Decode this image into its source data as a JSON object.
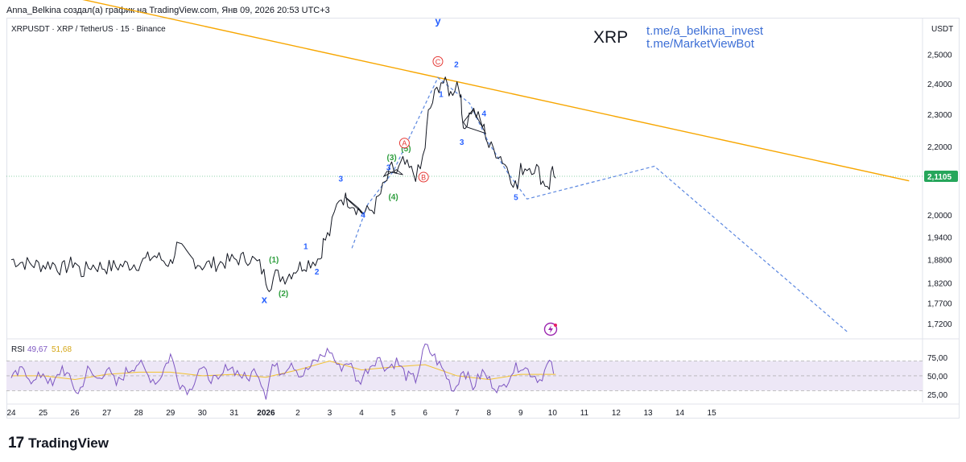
{
  "caption": "Anna_Belkina создал(а) график на TradingView.com, Янв 09, 2026 20:53 UTC+3",
  "footer": {
    "logo_mark": "17",
    "logo_text": "TradingView"
  },
  "colors": {
    "candle": "#131722",
    "trendline": "#f7a600",
    "wave_blue": "#2962ff",
    "wave_green": "#2e9e3e",
    "wave_red": "#e53935",
    "dashed": "#5b87e0",
    "rsi": "#7e57c2",
    "rsi_ma": "#f2c12e",
    "rsi_band": "#ede7f6",
    "price_tag": "#26a65b"
  },
  "icons": {
    "flash": "lightning-icon"
  },
  "chart_data": [
    {
      "type": "line",
      "header": {
        "symbol": "XRPUSDT · XRP / TetherUS · 15 · Binance"
      },
      "watermark": {
        "title": "XRP",
        "links": [
          "t.me/a_belkina_invest",
          "t.me/MarketViewBot"
        ]
      },
      "currency_label": "USDT",
      "yaxis": {
        "scale": "log",
        "ylim": [
          1.686,
          2.63
        ],
        "ticks": [
          "2,5000",
          "2,4000",
          "2,3000",
          "2,2000",
          "2,0000",
          "1,9400",
          "1,8800",
          "1,8200",
          "1,7700",
          "1,7200"
        ]
      },
      "tick_values": [
        2.5,
        2.4,
        2.3,
        2.2,
        2.0,
        1.94,
        1.88,
        1.82,
        1.77,
        1.72
      ],
      "last_price": {
        "label": "2,1105",
        "value": 2.1105
      },
      "xaxis": {
        "ticks": [
          "24",
          "25",
          "26",
          "27",
          "28",
          "29",
          "30",
          "31",
          "2026",
          "2",
          "3",
          "4",
          "5",
          "6",
          "7",
          "8",
          "9",
          "10",
          "11",
          "12",
          "13",
          "14",
          "15"
        ]
      },
      "price_path": [
        [
          0,
          1.88
        ],
        [
          0.5,
          1.87
        ],
        [
          1,
          1.865
        ],
        [
          1.3,
          1.87
        ],
        [
          1.6,
          1.855
        ],
        [
          2,
          1.875
        ],
        [
          2.2,
          1.845
        ],
        [
          2.5,
          1.865
        ],
        [
          3,
          1.86
        ],
        [
          3.5,
          1.865
        ],
        [
          4,
          1.87
        ],
        [
          4.5,
          1.89
        ],
        [
          5,
          1.87
        ],
        [
          5.2,
          1.915
        ],
        [
          5.5,
          1.89
        ],
        [
          6,
          1.865
        ],
        [
          6.5,
          1.87
        ],
        [
          7,
          1.88
        ],
        [
          7.5,
          1.885
        ],
        [
          7.8,
          1.865
        ],
        [
          8,
          1.83
        ],
        [
          8.1,
          1.815
        ],
        [
          8.3,
          1.84
        ],
        [
          8.6,
          1.835
        ],
        [
          9,
          1.86
        ],
        [
          9.4,
          1.875
        ],
        [
          9.7,
          1.885
        ],
        [
          9.8,
          1.925
        ],
        [
          10,
          1.95
        ],
        [
          10.3,
          2.05
        ],
        [
          10.5,
          2.045
        ],
        [
          10.7,
          2.035
        ],
        [
          10.9,
          2.015
        ],
        [
          11.1,
          2.005
        ],
        [
          11.4,
          2.02
        ],
        [
          11.6,
          2.06
        ],
        [
          11.8,
          2.1
        ],
        [
          11.95,
          2.135
        ],
        [
          12.1,
          2.12
        ],
        [
          12.3,
          2.15
        ],
        [
          12.5,
          2.13
        ],
        [
          12.7,
          2.115
        ],
        [
          12.85,
          2.13
        ],
        [
          13,
          2.2
        ],
        [
          13.1,
          2.3
        ],
        [
          13.3,
          2.36
        ],
        [
          13.5,
          2.41
        ],
        [
          13.7,
          2.39
        ],
        [
          13.8,
          2.365
        ],
        [
          14,
          2.405
        ],
        [
          14.1,
          2.38
        ],
        [
          14.15,
          2.3
        ],
        [
          14.25,
          2.26
        ],
        [
          14.45,
          2.315
        ],
        [
          14.6,
          2.3
        ],
        [
          14.8,
          2.265
        ],
        [
          14.9,
          2.24
        ],
        [
          15,
          2.2
        ],
        [
          15.3,
          2.18
        ],
        [
          15.5,
          2.15
        ],
        [
          15.7,
          2.11
        ],
        [
          15.9,
          2.075
        ],
        [
          16,
          2.13
        ],
        [
          16.2,
          2.14
        ],
        [
          16.5,
          2.135
        ],
        [
          16.7,
          2.095
        ],
        [
          16.9,
          2.085
        ],
        [
          17.0,
          2.14
        ],
        [
          17.1,
          2.105
        ]
      ],
      "trendline": [
        [
          -0.5,
          2.77
        ],
        [
          28.2,
          2.097
        ]
      ],
      "projection_path": [
        [
          10.7,
          1.91
        ],
        [
          11.2,
          2.03
        ],
        [
          12.0,
          2.125
        ],
        [
          13.4,
          2.42
        ],
        [
          14.4,
          2.335
        ],
        [
          15.0,
          2.21
        ],
        [
          15.6,
          2.12
        ],
        [
          16.2,
          2.045
        ],
        [
          20.2,
          2.14
        ],
        [
          26.3,
          1.698
        ]
      ],
      "triangles": [
        [
          [
            10.5,
            2.05
          ],
          [
            10.9,
            2.02
          ],
          [
            11.1,
            2.0
          ],
          [
            10.6,
            2.04
          ]
        ],
        [
          [
            11.7,
            2.11
          ],
          [
            12.1,
            2.13
          ],
          [
            12.3,
            2.115
          ],
          [
            11.8,
            2.125
          ]
        ],
        [
          [
            14.2,
            2.275
          ],
          [
            14.5,
            2.315
          ],
          [
            14.9,
            2.24
          ],
          [
            14.3,
            2.26
          ]
        ]
      ],
      "wave_labels": [
        {
          "text": "(1)",
          "x": 8.25,
          "y": 1.873,
          "color": "green"
        },
        {
          "text": "(2)",
          "x": 8.55,
          "y": 1.787,
          "color": "green"
        },
        {
          "text": "x",
          "x": 7.95,
          "y": 1.77,
          "color": "blue",
          "size": 13
        },
        {
          "text": "1",
          "x": 9.25,
          "y": 1.908,
          "color": "blue"
        },
        {
          "text": "2",
          "x": 9.6,
          "y": 1.842,
          "color": "blue"
        },
        {
          "text": "3",
          "x": 10.35,
          "y": 2.095,
          "color": "blue"
        },
        {
          "text": "4",
          "x": 11.05,
          "y": 1.992,
          "color": "blue"
        },
        {
          "text": "(3)",
          "x": 11.95,
          "y": 2.158,
          "color": "green"
        },
        {
          "text": "3",
          "x": 11.85,
          "y": 2.128,
          "color": "blue"
        },
        {
          "text": "(4)",
          "x": 12.0,
          "y": 2.043,
          "color": "green"
        },
        {
          "text": "(5)",
          "x": 12.4,
          "y": 2.185,
          "color": "green"
        },
        {
          "text": "y",
          "x": 13.4,
          "y": 2.605,
          "color": "blue",
          "size": 13
        },
        {
          "text": "2",
          "x": 13.98,
          "y": 2.455,
          "color": "blue"
        },
        {
          "text": "1",
          "x": 13.5,
          "y": 2.356,
          "color": "blue"
        },
        {
          "text": "3",
          "x": 14.15,
          "y": 2.205,
          "color": "blue"
        },
        {
          "text": "4",
          "x": 14.85,
          "y": 2.293,
          "color": "blue"
        },
        {
          "text": "5",
          "x": 15.85,
          "y": 2.042,
          "color": "blue"
        }
      ],
      "circle_labels": [
        {
          "text": "A",
          "x": 12.35,
          "y": 2.21
        },
        {
          "text": "B",
          "x": 12.95,
          "y": 2.108
        },
        {
          "text": "C",
          "x": 13.4,
          "y": 2.475
        }
      ]
    },
    {
      "type": "line",
      "label": "RSI",
      "values": [
        "49,67",
        "51,68"
      ],
      "yaxis": {
        "ylim": [
          14,
          100
        ],
        "ticks": [
          "75,00",
          "50,00",
          "25,00"
        ]
      },
      "tick_values": [
        75,
        50,
        25
      ],
      "band": [
        30,
        70
      ],
      "rsi_path": [
        [
          0,
          45
        ],
        [
          0.4,
          60
        ],
        [
          0.7,
          40
        ],
        [
          1,
          55
        ],
        [
          1.3,
          35
        ],
        [
          1.6,
          62
        ],
        [
          1.9,
          40
        ],
        [
          2.1,
          25
        ],
        [
          2.4,
          58
        ],
        [
          2.7,
          45
        ],
        [
          3,
          60
        ],
        [
          3.3,
          38
        ],
        [
          3.6,
          55
        ],
        [
          4,
          68
        ],
        [
          4.3,
          50
        ],
        [
          4.6,
          42
        ],
        [
          5,
          78
        ],
        [
          5.3,
          40
        ],
        [
          5.6,
          30
        ],
        [
          5.9,
          60
        ],
        [
          6.2,
          50
        ],
        [
          6.5,
          40
        ],
        [
          6.8,
          65
        ],
        [
          7.1,
          55
        ],
        [
          7.4,
          45
        ],
        [
          7.7,
          60
        ],
        [
          8,
          25
        ],
        [
          8.2,
          65
        ],
        [
          8.5,
          55
        ],
        [
          8.8,
          70
        ],
        [
          9.1,
          50
        ],
        [
          9.4,
          62
        ],
        [
          9.7,
          75
        ],
        [
          10,
          85
        ],
        [
          10.3,
          60
        ],
        [
          10.6,
          70
        ],
        [
          10.9,
          40
        ],
        [
          11.2,
          60
        ],
        [
          11.5,
          75
        ],
        [
          11.8,
          60
        ],
        [
          12.1,
          70
        ],
        [
          12.4,
          50
        ],
        [
          12.7,
          45
        ],
        [
          13,
          90
        ],
        [
          13.3,
          75
        ],
        [
          13.6,
          55
        ],
        [
          13.9,
          30
        ],
        [
          14.2,
          60
        ],
        [
          14.5,
          35
        ],
        [
          14.8,
          55
        ],
        [
          15.1,
          40
        ],
        [
          15.4,
          30
        ],
        [
          15.7,
          55
        ],
        [
          16,
          65
        ],
        [
          16.3,
          55
        ],
        [
          16.6,
          45
        ],
        [
          16.9,
          68
        ],
        [
          17.1,
          50
        ]
      ],
      "rsi_ma_path": [
        [
          0,
          50
        ],
        [
          1,
          50
        ],
        [
          2,
          45
        ],
        [
          3,
          52
        ],
        [
          4,
          55
        ],
        [
          5,
          55
        ],
        [
          6,
          50
        ],
        [
          7,
          52
        ],
        [
          8,
          48
        ],
        [
          9,
          58
        ],
        [
          10,
          70
        ],
        [
          11,
          58
        ],
        [
          12,
          62
        ],
        [
          13,
          65
        ],
        [
          14,
          50
        ],
        [
          15,
          45
        ],
        [
          16,
          52
        ],
        [
          17.1,
          52
        ]
      ]
    }
  ]
}
